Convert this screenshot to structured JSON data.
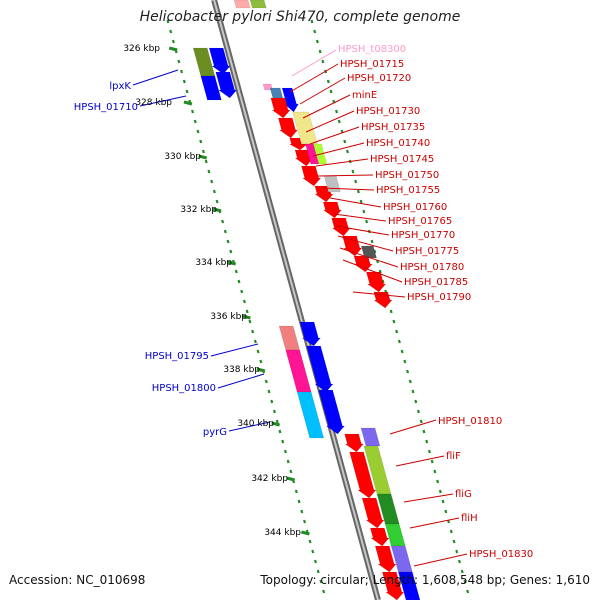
{
  "title": "Helicobacter pylori Shi470, complete genome",
  "footer": {
    "accession": "Accession: NC_010698",
    "topology": "Topology: circular; Length: 1,608,548 bp; Genes: 1,610"
  },
  "colors": {
    "backbone": "#8a8a8a",
    "tick": "#228b22",
    "left_label": "#0000cc",
    "right_label": "#cc0000",
    "trna_label": "#ff99cc"
  },
  "scale_labels": [
    "326 kbp",
    "328 kbp",
    "330 kbp",
    "332 kbp",
    "334 kbp",
    "336 kbp",
    "338 kbp",
    "340 kbp",
    "342 kbp",
    "344 kbp"
  ],
  "left_labels": [
    "lpxK",
    "HPSH_01710",
    "HPSH_01795",
    "HPSH_01800",
    "pyrG"
  ],
  "right_labels_top": [
    "HPSH_t08300",
    "HPSH_01715",
    "HPSH_01720",
    "minE",
    "HPSH_01730",
    "HPSH_01735",
    "HPSH_01740",
    "HPSH_01745",
    "HPSH_01750",
    "HPSH_01755",
    "HPSH_01760",
    "HPSH_01765",
    "HPSH_01770",
    "HPSH_01775",
    "HPSH_01780",
    "HPSH_01785",
    "HPSH_01790"
  ],
  "right_labels_bottom": [
    "HPSH_01810",
    "fliF",
    "fliG",
    "fliH",
    "HPSH_01830"
  ]
}
